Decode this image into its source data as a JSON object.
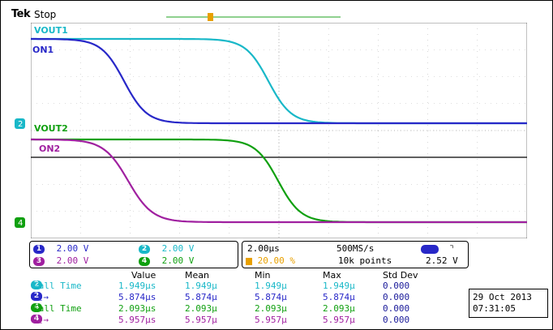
{
  "header": {
    "brand": "Tek",
    "status": "Stop"
  },
  "channels": {
    "ch1": {
      "label": "ON1",
      "scale": "2.00 V",
      "number": "1",
      "color": "#2828c8"
    },
    "ch2": {
      "label": "VOUT1",
      "scale": "2.00 V",
      "number": "2",
      "color": "#19b8c8"
    },
    "ch3": {
      "label": "ON2",
      "scale": "2.00 V",
      "number": "3",
      "color": "#a020a0"
    },
    "ch4": {
      "label": "VOUT2",
      "scale": "2.00 V",
      "number": "4",
      "color": "#10a010"
    }
  },
  "waveforms": {
    "start_ns": 0,
    "end_us": 20,
    "trace_traces": [
      "VOUT1",
      "ON1",
      "VOUT2",
      "ON2"
    ]
  },
  "timebase": {
    "horizontal_scale": "2.00µs",
    "sample_rate": "500MS/s",
    "trigger_position": "20.00 %",
    "record_length": "10k points",
    "trigger_level": "2.52 V",
    "trigger_slope_icon": "falling-edge-icon"
  },
  "measurements": {
    "headers": [
      "Value",
      "Mean",
      "Min",
      "Max",
      "Std Dev"
    ],
    "rows": [
      {
        "label": "Fall Time",
        "source": "2",
        "target": "",
        "value": "1.949µs",
        "mean": "1.949µ",
        "min": "1.949µ",
        "max": "1.949µ",
        "std": "0.000",
        "color": "#19b8c8"
      },
      {
        "label": "",
        "source": "1",
        "target": "2",
        "value": "5.874µs",
        "mean": "5.874µ",
        "min": "5.874µ",
        "max": "5.874µ",
        "std": "0.000",
        "color": "#2828c8"
      },
      {
        "label": "Fall Time",
        "source": "4",
        "target": "",
        "value": "2.093µs",
        "mean": "2.093µ",
        "min": "2.093µ",
        "max": "2.093µ",
        "std": "0.000",
        "color": "#10a010"
      },
      {
        "label": "",
        "source": "3",
        "target": "4",
        "value": "5.957µs",
        "mean": "5.957µ",
        "min": "5.957µ",
        "max": "5.957µ",
        "std": "0.000",
        "color": "#a020a0"
      }
    ]
  },
  "datetime": {
    "date": "29 Oct 2013",
    "time": "07:31:05"
  }
}
